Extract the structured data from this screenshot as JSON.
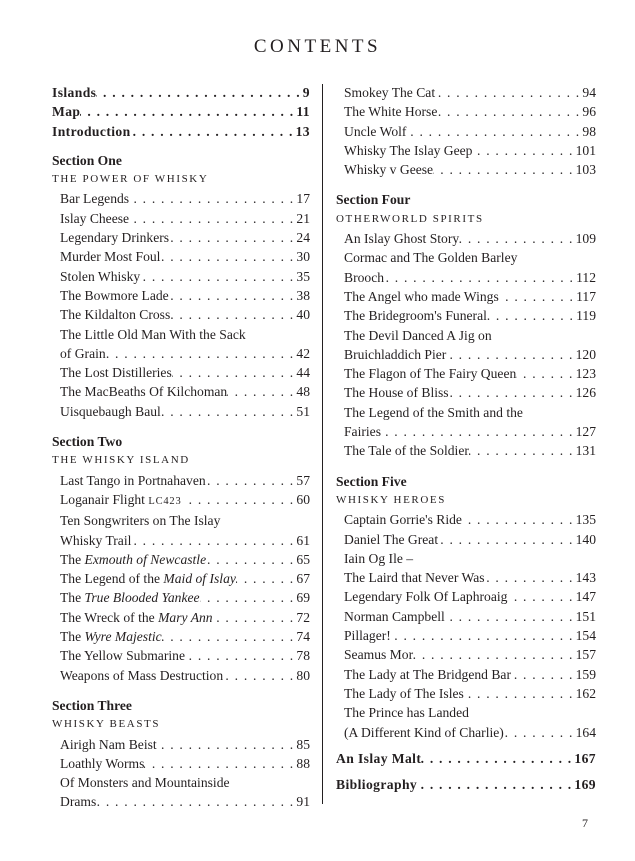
{
  "title": "CONTENTS",
  "page_number": "7",
  "columns": [
    {
      "items": [
        {
          "type": "main",
          "title": [
            {
              "t": "Islands"
            }
          ],
          "page": "9"
        },
        {
          "type": "main",
          "title": [
            {
              "t": "Map"
            }
          ],
          "page": "11"
        },
        {
          "type": "main",
          "title": [
            {
              "t": "Introduction"
            }
          ],
          "page": "13"
        },
        {
          "type": "section",
          "text": "Section One",
          "first": true
        },
        {
          "type": "subtitle",
          "text": "THE POWER OF WHISKY"
        },
        {
          "type": "entry",
          "title": [
            {
              "t": "Bar Legends"
            }
          ],
          "page": "17"
        },
        {
          "type": "entry",
          "title": [
            {
              "t": "Islay Cheese"
            }
          ],
          "page": "21"
        },
        {
          "type": "entry",
          "title": [
            {
              "t": "Legendary Drinkers"
            }
          ],
          "page": "24"
        },
        {
          "type": "entry",
          "title": [
            {
              "t": "Murder Most Foul"
            }
          ],
          "page": "30"
        },
        {
          "type": "entry",
          "title": [
            {
              "t": "Stolen Whisky"
            }
          ],
          "page": "35"
        },
        {
          "type": "entry",
          "title": [
            {
              "t": "The Bowmore Lade"
            }
          ],
          "page": "38"
        },
        {
          "type": "entry",
          "title": [
            {
              "t": "The Kildalton Cross"
            }
          ],
          "page": "40"
        },
        {
          "type": "entry",
          "wrap": "The Little Old Man With the Sack",
          "title": [
            {
              "t": "of Grain"
            }
          ],
          "page": "42"
        },
        {
          "type": "entry",
          "title": [
            {
              "t": "The Lost Distilleries"
            }
          ],
          "page": "44"
        },
        {
          "type": "entry",
          "title": [
            {
              "t": "The MacBeaths Of Kilchoman"
            }
          ],
          "page": "48"
        },
        {
          "type": "entry",
          "title": [
            {
              "t": "Uisquebaugh Baul"
            }
          ],
          "page": "51"
        },
        {
          "type": "section",
          "text": "Section Two"
        },
        {
          "type": "subtitle",
          "text": "THE WHISKY ISLAND"
        },
        {
          "type": "entry",
          "title": [
            {
              "t": "Last Tango in Portnahaven"
            }
          ],
          "page": "57"
        },
        {
          "type": "entry",
          "title": [
            {
              "t": "Loganair Flight "
            },
            {
              "t": "LC423",
              "sc": true
            }
          ],
          "page": "60"
        },
        {
          "type": "entry",
          "wrap": "Ten Songwriters on The Islay",
          "title": [
            {
              "t": "Whisky Trail"
            }
          ],
          "page": "61"
        },
        {
          "type": "entry",
          "title": [
            {
              "t": "The "
            },
            {
              "t": "Exmouth of Newcastle",
              "i": true
            }
          ],
          "page": "65"
        },
        {
          "type": "entry",
          "title": [
            {
              "t": "The Legend of the "
            },
            {
              "t": "Maid of Islay",
              "i": true
            }
          ],
          "page": "67"
        },
        {
          "type": "entry",
          "title": [
            {
              "t": "The "
            },
            {
              "t": "True Blooded Yankee",
              "i": true
            }
          ],
          "page": "69"
        },
        {
          "type": "entry",
          "title": [
            {
              "t": "The Wreck of the "
            },
            {
              "t": "Mary Ann",
              "i": true
            }
          ],
          "page": "72"
        },
        {
          "type": "entry",
          "title": [
            {
              "t": "The "
            },
            {
              "t": "Wyre Majestic",
              "i": true
            }
          ],
          "page": "74"
        },
        {
          "type": "entry",
          "title": [
            {
              "t": "The Yellow Submarine"
            }
          ],
          "page": "78"
        },
        {
          "type": "entry",
          "title": [
            {
              "t": "Weapons of Mass Destruction"
            }
          ],
          "page": "80"
        },
        {
          "type": "section",
          "text": "Section Three"
        },
        {
          "type": "subtitle",
          "text": "WHISKY BEASTS"
        },
        {
          "type": "entry",
          "title": [
            {
              "t": "Airigh Nam Beist"
            }
          ],
          "page": "85"
        },
        {
          "type": "entry",
          "title": [
            {
              "t": "Loathly Worms"
            }
          ],
          "page": "88"
        },
        {
          "type": "entry",
          "wrap": "Of Monsters and Mountainside",
          "title": [
            {
              "t": "Drams"
            }
          ],
          "page": "91"
        }
      ]
    },
    {
      "items": [
        {
          "type": "entry",
          "title": [
            {
              "t": "Smokey The Cat"
            }
          ],
          "page": "94"
        },
        {
          "type": "entry",
          "title": [
            {
              "t": "The White Horse"
            }
          ],
          "page": "96"
        },
        {
          "type": "entry",
          "title": [
            {
              "t": "Uncle Wolf"
            }
          ],
          "page": "98"
        },
        {
          "type": "entry",
          "title": [
            {
              "t": "Whisky The Islay Geep"
            }
          ],
          "page": "101"
        },
        {
          "type": "entry",
          "title": [
            {
              "t": "Whisky v Geese"
            }
          ],
          "page": "103"
        },
        {
          "type": "section",
          "text": "Section Four"
        },
        {
          "type": "subtitle",
          "text": "OTHERWORLD SPIRITS"
        },
        {
          "type": "entry",
          "title": [
            {
              "t": "An Islay Ghost Story"
            }
          ],
          "page": "109"
        },
        {
          "type": "entry",
          "wrap": "Cormac and The Golden Barley",
          "title": [
            {
              "t": "Brooch"
            }
          ],
          "page": "112"
        },
        {
          "type": "entry",
          "title": [
            {
              "t": "The Angel who made Wings"
            }
          ],
          "page": "117"
        },
        {
          "type": "entry",
          "title": [
            {
              "t": "The Bridegroom's Funeral"
            }
          ],
          "page": "119"
        },
        {
          "type": "entry",
          "wrap": "The Devil Danced A Jig on",
          "title": [
            {
              "t": "Bruichladdich Pier"
            }
          ],
          "page": "120"
        },
        {
          "type": "entry",
          "title": [
            {
              "t": "The Flagon of The Fairy Queen"
            }
          ],
          "page": "123"
        },
        {
          "type": "entry",
          "title": [
            {
              "t": "The House of Bliss"
            }
          ],
          "page": "126"
        },
        {
          "type": "entry",
          "wrap": "The Legend of the Smith and the",
          "title": [
            {
              "t": "Fairies"
            }
          ],
          "page": "127"
        },
        {
          "type": "entry",
          "title": [
            {
              "t": "The Tale of the Soldier"
            }
          ],
          "page": "131"
        },
        {
          "type": "section",
          "text": "Section Five"
        },
        {
          "type": "subtitle",
          "text": "WHISKY HEROES"
        },
        {
          "type": "entry",
          "title": [
            {
              "t": "Captain Gorrie's Ride"
            }
          ],
          "page": "135"
        },
        {
          "type": "entry",
          "title": [
            {
              "t": "Daniel The Great"
            }
          ],
          "page": "140"
        },
        {
          "type": "entry",
          "wrap": "Iain Og Ile –",
          "title": [
            {
              "t": "The Laird that Never Was"
            }
          ],
          "page": "143"
        },
        {
          "type": "entry",
          "title": [
            {
              "t": "Legendary Folk Of Laphroaig"
            }
          ],
          "page": "147"
        },
        {
          "type": "entry",
          "title": [
            {
              "t": "Norman Campbell"
            }
          ],
          "page": "151"
        },
        {
          "type": "entry",
          "title": [
            {
              "t": "Pillager!"
            }
          ],
          "page": "154"
        },
        {
          "type": "entry",
          "title": [
            {
              "t": "Seamus Mor"
            }
          ],
          "page": "157"
        },
        {
          "type": "entry",
          "title": [
            {
              "t": "The Lady at The Bridgend Bar"
            }
          ],
          "page": "159"
        },
        {
          "type": "entry",
          "title": [
            {
              "t": "The Lady of The Isles"
            }
          ],
          "page": "162"
        },
        {
          "type": "entry",
          "wrap": "The Prince has Landed",
          "title": [
            {
              "t": "(A Different Kind of Charlie)"
            }
          ],
          "page": "164"
        },
        {
          "type": "main",
          "gap": true,
          "title": [
            {
              "t": "An Islay Malt"
            }
          ],
          "page": "167"
        },
        {
          "type": "main",
          "gap": true,
          "title": [
            {
              "t": "Bibliography"
            }
          ],
          "page": "169"
        }
      ]
    }
  ]
}
